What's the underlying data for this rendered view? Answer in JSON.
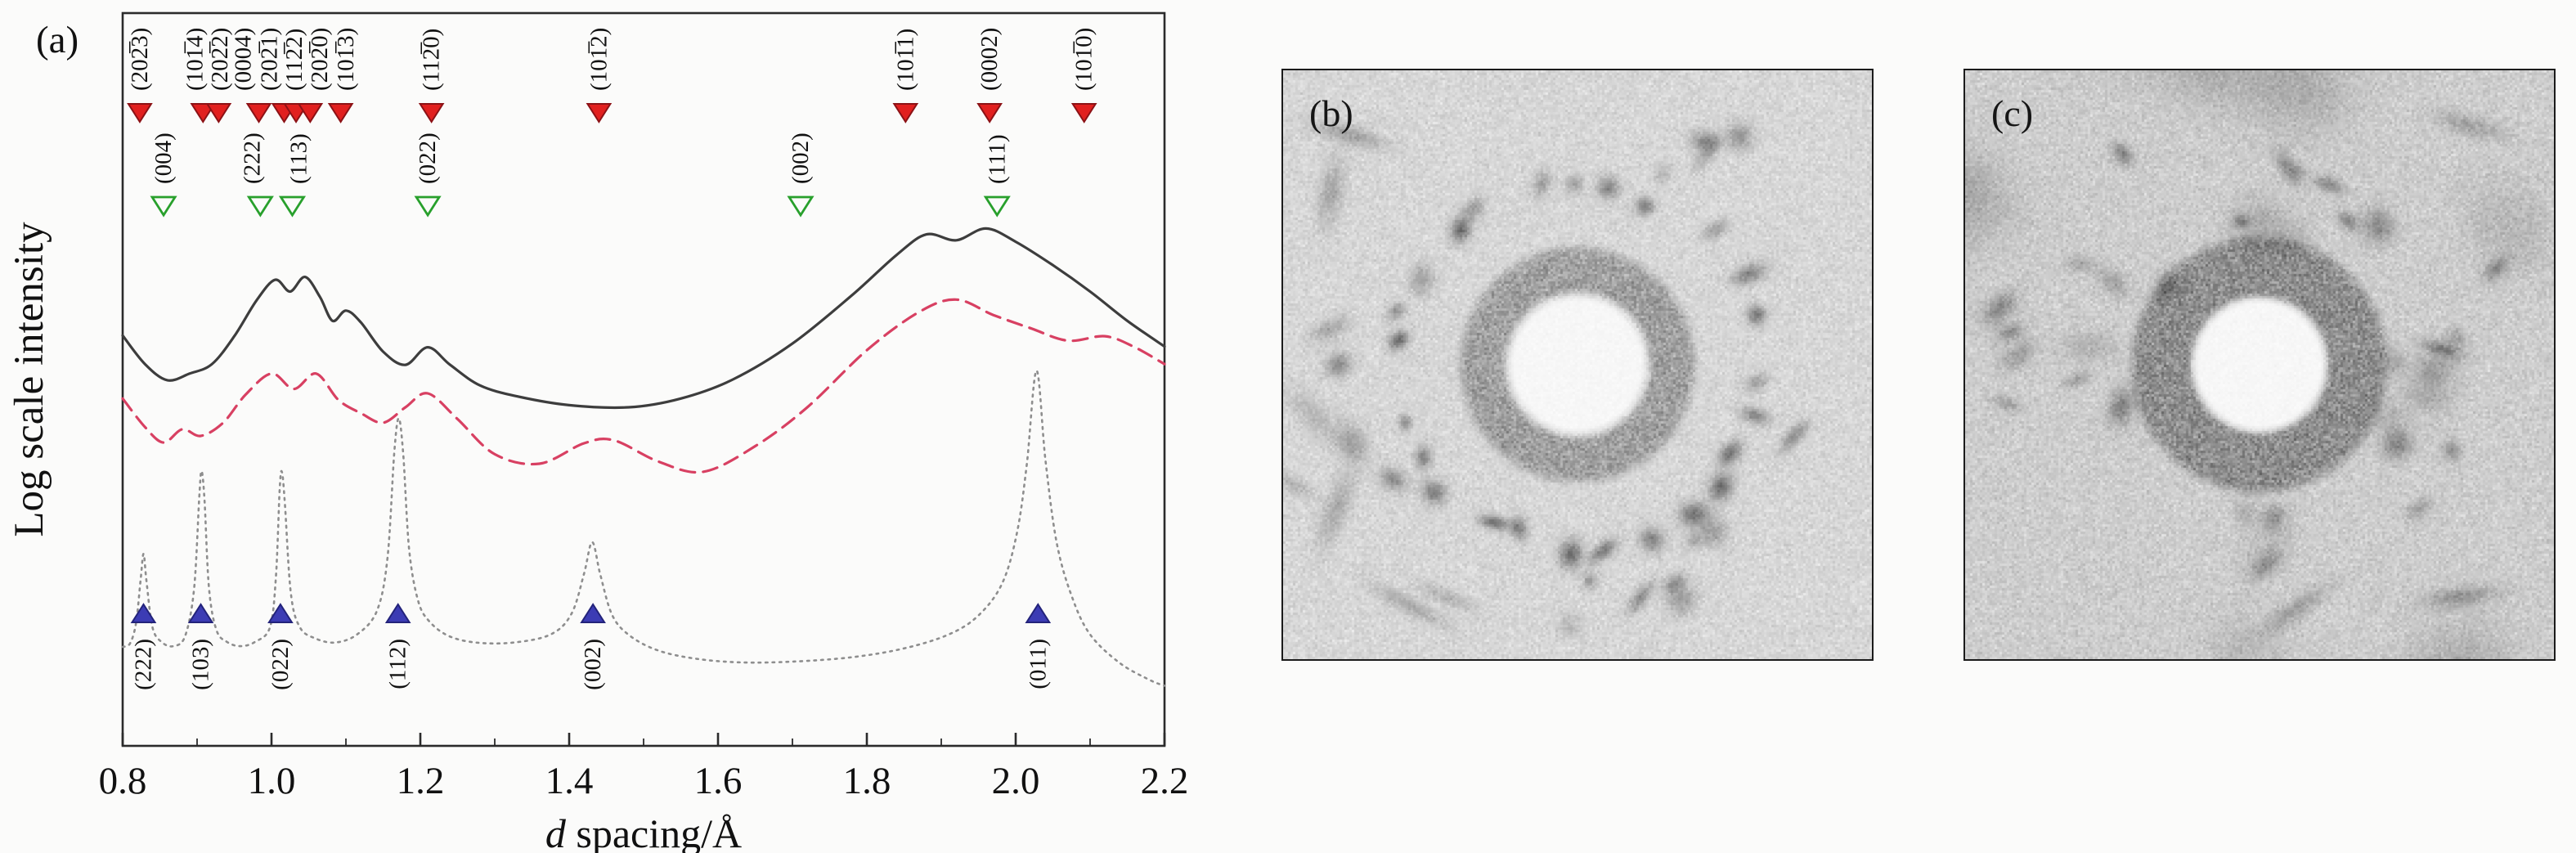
{
  "figure": {
    "panel_a_label": "(a)",
    "panel_b_label": "(b)",
    "panel_c_label": "(c)"
  },
  "chart_data": {
    "type": "line",
    "title": "",
    "ylabel": "Log scale intensity",
    "xlabel": {
      "var": "d",
      "rest": " spacing/Å"
    },
    "xlim": [
      0.8,
      2.2
    ],
    "x_ticks": [
      "0.8",
      "1.0",
      "1.2",
      "1.4",
      "1.6",
      "1.8",
      "2.0",
      "2.2"
    ],
    "grid": false,
    "legend": "none",
    "series": [
      {
        "name": "pattern-top-solid",
        "style": "solid",
        "color": "#3d3d3d",
        "width": 3.2,
        "dash": "",
        "points": [
          [
            0.8,
            0.56
          ],
          [
            0.83,
            0.521
          ],
          [
            0.86,
            0.499
          ],
          [
            0.89,
            0.508
          ],
          [
            0.92,
            0.521
          ],
          [
            0.95,
            0.559
          ],
          [
            0.98,
            0.608
          ],
          [
            1.005,
            0.636
          ],
          [
            1.025,
            0.62
          ],
          [
            1.045,
            0.64
          ],
          [
            1.065,
            0.613
          ],
          [
            1.082,
            0.58
          ],
          [
            1.1,
            0.594
          ],
          [
            1.12,
            0.578
          ],
          [
            1.15,
            0.538
          ],
          [
            1.18,
            0.52
          ],
          [
            1.21,
            0.544
          ],
          [
            1.24,
            0.52
          ],
          [
            1.28,
            0.492
          ],
          [
            1.33,
            0.477
          ],
          [
            1.4,
            0.465
          ],
          [
            1.48,
            0.462
          ],
          [
            1.55,
            0.474
          ],
          [
            1.62,
            0.5
          ],
          [
            1.7,
            0.549
          ],
          [
            1.78,
            0.615
          ],
          [
            1.84,
            0.67
          ],
          [
            1.88,
            0.698
          ],
          [
            1.92,
            0.69
          ],
          [
            1.96,
            0.706
          ],
          [
            2.0,
            0.688
          ],
          [
            2.05,
            0.656
          ],
          [
            2.1,
            0.62
          ],
          [
            2.15,
            0.58
          ],
          [
            2.2,
            0.545
          ]
        ]
      },
      {
        "name": "pattern-middle-dashed",
        "style": "dashed",
        "color": "#d84062",
        "width": 3.2,
        "dash": "18 10",
        "points": [
          [
            0.8,
            0.474
          ],
          [
            0.83,
            0.435
          ],
          [
            0.855,
            0.414
          ],
          [
            0.88,
            0.432
          ],
          [
            0.905,
            0.423
          ],
          [
            0.935,
            0.441
          ],
          [
            0.965,
            0.479
          ],
          [
            1.0,
            0.508
          ],
          [
            1.03,
            0.487
          ],
          [
            1.06,
            0.508
          ],
          [
            1.09,
            0.472
          ],
          [
            1.12,
            0.454
          ],
          [
            1.15,
            0.441
          ],
          [
            1.18,
            0.462
          ],
          [
            1.21,
            0.481
          ],
          [
            1.25,
            0.446
          ],
          [
            1.3,
            0.398
          ],
          [
            1.36,
            0.385
          ],
          [
            1.42,
            0.413
          ],
          [
            1.46,
            0.417
          ],
          [
            1.52,
            0.388
          ],
          [
            1.58,
            0.374
          ],
          [
            1.65,
            0.409
          ],
          [
            1.72,
            0.462
          ],
          [
            1.8,
            0.54
          ],
          [
            1.87,
            0.592
          ],
          [
            1.92,
            0.609
          ],
          [
            1.97,
            0.588
          ],
          [
            2.02,
            0.57
          ],
          [
            2.07,
            0.553
          ],
          [
            2.12,
            0.559
          ],
          [
            2.16,
            0.544
          ],
          [
            2.2,
            0.521
          ]
        ]
      },
      {
        "name": "pattern-bottom-dotted",
        "style": "dotted",
        "color": "#8e8e8e",
        "width": 2.6,
        "dash": "2.5 6",
        "points": [
          [
            0.8,
            0.135
          ],
          [
            0.81,
            0.14
          ],
          [
            0.818,
            0.168
          ],
          [
            0.824,
            0.225
          ],
          [
            0.828,
            0.262
          ],
          [
            0.832,
            0.225
          ],
          [
            0.84,
            0.162
          ],
          [
            0.852,
            0.142
          ],
          [
            0.868,
            0.136
          ],
          [
            0.884,
            0.15
          ],
          [
            0.896,
            0.215
          ],
          [
            0.903,
            0.34
          ],
          [
            0.906,
            0.375
          ],
          [
            0.91,
            0.335
          ],
          [
            0.916,
            0.215
          ],
          [
            0.926,
            0.158
          ],
          [
            0.94,
            0.142
          ],
          [
            0.958,
            0.136
          ],
          [
            0.978,
            0.142
          ],
          [
            0.998,
            0.162
          ],
          [
            1.006,
            0.232
          ],
          [
            1.011,
            0.35
          ],
          [
            1.014,
            0.374
          ],
          [
            1.018,
            0.33
          ],
          [
            1.026,
            0.208
          ],
          [
            1.038,
            0.162
          ],
          [
            1.058,
            0.147
          ],
          [
            1.085,
            0.141
          ],
          [
            1.115,
            0.152
          ],
          [
            1.142,
            0.185
          ],
          [
            1.156,
            0.258
          ],
          [
            1.165,
            0.4
          ],
          [
            1.171,
            0.447
          ],
          [
            1.177,
            0.398
          ],
          [
            1.185,
            0.268
          ],
          [
            1.197,
            0.198
          ],
          [
            1.212,
            0.17
          ],
          [
            1.238,
            0.15
          ],
          [
            1.275,
            0.141
          ],
          [
            1.325,
            0.141
          ],
          [
            1.375,
            0.152
          ],
          [
            1.403,
            0.18
          ],
          [
            1.42,
            0.235
          ],
          [
            1.431,
            0.278
          ],
          [
            1.442,
            0.233
          ],
          [
            1.458,
            0.178
          ],
          [
            1.482,
            0.15
          ],
          [
            1.52,
            0.13
          ],
          [
            1.57,
            0.119
          ],
          [
            1.63,
            0.114
          ],
          [
            1.7,
            0.115
          ],
          [
            1.78,
            0.121
          ],
          [
            1.85,
            0.133
          ],
          [
            1.91,
            0.152
          ],
          [
            1.95,
            0.178
          ],
          [
            1.982,
            0.222
          ],
          [
            2.002,
            0.292
          ],
          [
            2.015,
            0.385
          ],
          [
            2.028,
            0.512
          ],
          [
            2.04,
            0.39
          ],
          [
            2.055,
            0.278
          ],
          [
            2.075,
            0.205
          ],
          [
            2.1,
            0.152
          ],
          [
            2.14,
            0.113
          ],
          [
            2.18,
            0.09
          ],
          [
            2.2,
            0.082
          ]
        ]
      }
    ],
    "marker_rows": [
      {
        "name": "hcp-phase-red",
        "shape": "down",
        "open": false,
        "fill": "#e1201f",
        "stroke": "#8c1216",
        "row_y": 138,
        "label_pos": "above",
        "markers": [
          {
            "label": "(202̅3)",
            "x": 0.823
          },
          {
            "label": "(101̅4)",
            "x": 0.908,
            "lx": 0.897
          },
          {
            "label": "(202̅2)",
            "x": 0.929,
            "lx": 0.931
          },
          {
            "label": "(0004)",
            "x": 0.983,
            "lx": 0.962
          },
          {
            "label": "(202̅1)",
            "x": 1.017,
            "lx": 0.997
          },
          {
            "label": "(112̅2)",
            "x": 1.033,
            "lx": 1.031
          },
          {
            "label": "(202̅0)",
            "x": 1.052,
            "lx": 1.065
          },
          {
            "label": "(101̅3)",
            "x": 1.093,
            "lx": 1.1
          },
          {
            "label": "(112̅0)",
            "x": 1.215
          },
          {
            "label": "(101̅2)",
            "x": 1.44
          },
          {
            "label": "(101̅1)",
            "x": 1.852
          },
          {
            "label": "(0002)",
            "x": 1.965
          },
          {
            "label": "(101̅0)",
            "x": 2.092
          }
        ]
      },
      {
        "name": "fcc-phase-green",
        "shape": "down",
        "open": true,
        "fill": "none",
        "stroke": "#28a02c",
        "row_y": 252,
        "label_pos": "above",
        "markers": [
          {
            "label": "(004)",
            "x": 0.855
          },
          {
            "label": "(222)",
            "x": 0.985,
            "lx": 0.974
          },
          {
            "label": "(113)",
            "x": 1.028,
            "lx": 1.037
          },
          {
            "label": "(022)",
            "x": 1.21
          },
          {
            "label": "(002)",
            "x": 1.711
          },
          {
            "label": "(111)",
            "x": 1.975
          }
        ]
      },
      {
        "name": "bcc-phase-blue",
        "shape": "up",
        "open": false,
        "fill": "#3c3cb4",
        "stroke": "#23237a",
        "row_y": 750,
        "label_pos": "below",
        "markers": [
          {
            "label": "(222)",
            "x": 0.828
          },
          {
            "label": "(103)",
            "x": 0.905
          },
          {
            "label": "(022)",
            "x": 1.012
          },
          {
            "label": "(112)",
            "x": 1.17
          },
          {
            "label": "(002)",
            "x": 1.432
          },
          {
            "label": "(011)",
            "x": 2.03
          }
        ]
      }
    ]
  }
}
